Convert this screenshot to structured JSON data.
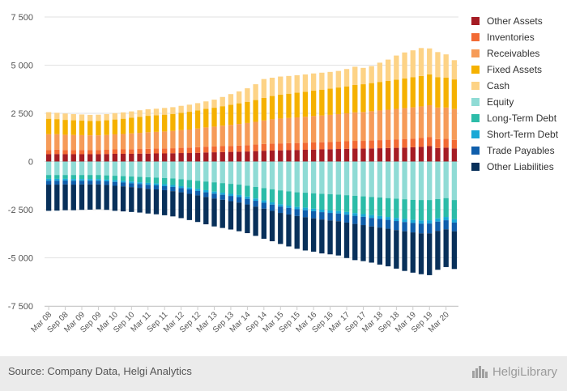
{
  "chart_data": {
    "type": "bar",
    "stacked": true,
    "title": "",
    "xlabel": "",
    "ylabel": "",
    "ylim": [
      -7500,
      7500
    ],
    "yticks": [
      -7500,
      -5000,
      -2500,
      0,
      2500,
      5000,
      7500
    ],
    "ytick_labels": [
      "-7 500",
      "-5 000",
      "-2 500",
      "0",
      "2 500",
      "5 000",
      "7 500"
    ],
    "grid": true,
    "legend": "right",
    "categories": [
      "Mar 08",
      "Jun 08",
      "Sep 08",
      "Dec 08",
      "Mar 09",
      "Jun 09",
      "Sep 09",
      "Dec 09",
      "Mar 10",
      "Jun 10",
      "Sep 10",
      "Dec 10",
      "Mar 11",
      "Jun 11",
      "Sep 11",
      "Dec 11",
      "Mar 12",
      "Jun 12",
      "Sep 12",
      "Dec 12",
      "Mar 13",
      "Jun 13",
      "Sep 13",
      "Dec 13",
      "Mar 14",
      "Jun 14",
      "Sep 14",
      "Dec 14",
      "Mar 15",
      "Jun 15",
      "Sep 15",
      "Dec 15",
      "Mar 16",
      "Jun 16",
      "Sep 16",
      "Dec 16",
      "Mar 17",
      "Jun 17",
      "Sep 17",
      "Dec 17",
      "Mar 18",
      "Jun 18",
      "Sep 18",
      "Dec 18",
      "Mar 19",
      "Jun 19",
      "Sep 19",
      "Dec 19",
      "Mar 20",
      "Jun 20"
    ],
    "xtick_labels": [
      "Mar 08",
      "Sep 08",
      "Mar 09",
      "Sep 09",
      "Mar 10",
      "Sep 10",
      "Mar 11",
      "Sep 11",
      "Mar 12",
      "Sep 12",
      "Mar 13",
      "Sep 13",
      "Mar 14",
      "Sep 14",
      "Mar 15",
      "Sep 15",
      "Mar 16",
      "Sep 16",
      "Mar 17",
      "Sep 17",
      "Mar 18",
      "Sep 18",
      "Mar 19",
      "Sep 19",
      "Mar 20"
    ],
    "series": [
      {
        "name": "Other Assets",
        "color": "#a51c24",
        "values": [
          380,
          390,
          380,
          380,
          380,
          380,
          380,
          390,
          400,
          400,
          400,
          410,
          410,
          420,
          420,
          430,
          440,
          440,
          450,
          470,
          480,
          490,
          500,
          510,
          520,
          540,
          560,
          570,
          580,
          590,
          600,
          610,
          620,
          630,
          640,
          650,
          660,
          670,
          670,
          680,
          690,
          700,
          710,
          720,
          740,
          760,
          800,
          700,
          720,
          680
        ]
      },
      {
        "name": "Inventories",
        "color": "#f26a34",
        "values": [
          220,
          230,
          220,
          220,
          220,
          220,
          220,
          220,
          230,
          230,
          240,
          240,
          250,
          250,
          260,
          260,
          270,
          280,
          290,
          300,
          300,
          310,
          310,
          320,
          330,
          340,
          350,
          360,
          360,
          360,
          360,
          360,
          370,
          370,
          370,
          380,
          390,
          400,
          400,
          410,
          420,
          430,
          440,
          450,
          450,
          460,
          460,
          460,
          460,
          440
        ]
      },
      {
        "name": "Receivables",
        "color": "#f69b58",
        "values": [
          820,
          800,
          790,
          780,
          770,
          760,
          760,
          770,
          780,
          800,
          820,
          840,
          860,
          870,
          880,
          900,
          920,
          940,
          970,
          1000,
          1030,
          1060,
          1090,
          1120,
          1150,
          1180,
          1220,
          1260,
          1290,
          1310,
          1330,
          1350,
          1370,
          1390,
          1410,
          1430,
          1450,
          1480,
          1500,
          1520,
          1540,
          1560,
          1580,
          1600,
          1620,
          1640,
          1660,
          1640,
          1620,
          1600
        ]
      },
      {
        "name": "Fixed Assets",
        "color": "#f5b100",
        "values": [
          800,
          780,
          770,
          760,
          750,
          740,
          750,
          760,
          770,
          790,
          810,
          830,
          850,
          860,
          870,
          880,
          900,
          920,
          940,
          960,
          980,
          1010,
          1040,
          1070,
          1100,
          1130,
          1170,
          1210,
          1240,
          1260,
          1280,
          1300,
          1320,
          1340,
          1360,
          1380,
          1400,
          1420,
          1440,
          1460,
          1480,
          1500,
          1520,
          1540,
          1560,
          1580,
          1600,
          1580,
          1560,
          1540
        ]
      },
      {
        "name": "Cash",
        "color": "#fdd386",
        "values": [
          340,
          330,
          330,
          320,
          320,
          320,
          320,
          320,
          330,
          330,
          330,
          340,
          340,
          340,
          350,
          350,
          360,
          370,
          380,
          390,
          420,
          480,
          560,
          620,
          700,
          820,
          980,
          950,
          940,
          920,
          910,
          900,
          890,
          880,
          870,
          860,
          900,
          950,
          850,
          880,
          1000,
          1100,
          1250,
          1350,
          1400,
          1450,
          1350,
          1300,
          1200,
          1000
        ]
      },
      {
        "name": "Equity",
        "color": "#8fdbd5",
        "values": [
          -700,
          -700,
          -700,
          -700,
          -700,
          -700,
          -700,
          -720,
          -740,
          -760,
          -780,
          -800,
          -820,
          -840,
          -860,
          -880,
          -920,
          -960,
          -1000,
          -1040,
          -1080,
          -1120,
          -1160,
          -1200,
          -1260,
          -1320,
          -1380,
          -1440,
          -1500,
          -1550,
          -1600,
          -1620,
          -1650,
          -1680,
          -1700,
          -1720,
          -1750,
          -1780,
          -1810,
          -1840,
          -1870,
          -1900,
          -1930,
          -1960,
          -1990,
          -2000,
          -2000,
          -1950,
          -1900,
          -2000
        ]
      },
      {
        "name": "Long-Term Debt",
        "color": "#2cbca8",
        "values": [
          -200,
          -200,
          -200,
          -210,
          -210,
          -210,
          -210,
          -220,
          -230,
          -240,
          -260,
          -280,
          -290,
          -300,
          -320,
          -340,
          -360,
          -390,
          -420,
          -450,
          -480,
          -500,
          -520,
          -540,
          -560,
          -600,
          -640,
          -680,
          -720,
          -740,
          -760,
          -780,
          -800,
          -820,
          -840,
          -850,
          -870,
          -900,
          -920,
          -940,
          -960,
          -980,
          -1000,
          -1020,
          -1040,
          -1060,
          -1050,
          -1000,
          -980,
          -1000
        ]
      },
      {
        "name": "Short-Term Debt",
        "color": "#1aa8d6",
        "values": [
          -100,
          -100,
          -90,
          -90,
          -90,
          -90,
          -90,
          -90,
          -90,
          -90,
          -90,
          -90,
          -100,
          -100,
          -100,
          -100,
          -100,
          -100,
          -110,
          -110,
          -110,
          -110,
          -110,
          -110,
          -120,
          -120,
          -120,
          -120,
          -120,
          -120,
          -120,
          -130,
          -130,
          -130,
          -130,
          -130,
          -140,
          -140,
          -140,
          -150,
          -150,
          -150,
          -160,
          -160,
          -160,
          -170,
          -170,
          -170,
          -170,
          -170
        ]
      },
      {
        "name": "Trade Payables",
        "color": "#0f5eab",
        "values": [
          -200,
          -200,
          -200,
          -200,
          -190,
          -190,
          -190,
          -190,
          -200,
          -200,
          -200,
          -200,
          -210,
          -210,
          -210,
          -220,
          -220,
          -230,
          -230,
          -240,
          -250,
          -260,
          -270,
          -280,
          -290,
          -300,
          -310,
          -320,
          -330,
          -340,
          -350,
          -360,
          -370,
          -380,
          -390,
          -400,
          -410,
          -420,
          -430,
          -440,
          -450,
          -460,
          -470,
          -480,
          -490,
          -500,
          -510,
          -480,
          -470,
          -450
        ]
      },
      {
        "name": "Other Liabilities",
        "color": "#08305a",
        "values": [
          -1360,
          -1350,
          -1340,
          -1330,
          -1320,
          -1310,
          -1290,
          -1290,
          -1300,
          -1300,
          -1290,
          -1280,
          -1280,
          -1290,
          -1300,
          -1310,
          -1340,
          -1360,
          -1380,
          -1420,
          -1450,
          -1460,
          -1470,
          -1490,
          -1490,
          -1520,
          -1560,
          -1580,
          -1610,
          -1660,
          -1700,
          -1730,
          -1730,
          -1760,
          -1760,
          -1780,
          -1840,
          -1880,
          -1870,
          -1880,
          -1920,
          -1950,
          -2000,
          -2060,
          -2090,
          -2120,
          -2170,
          -2020,
          -1960,
          -1960
        ]
      }
    ]
  },
  "footer": {
    "source": "Source: Company Data, Helgi Analytics",
    "brand": "HelgiLibrary"
  }
}
